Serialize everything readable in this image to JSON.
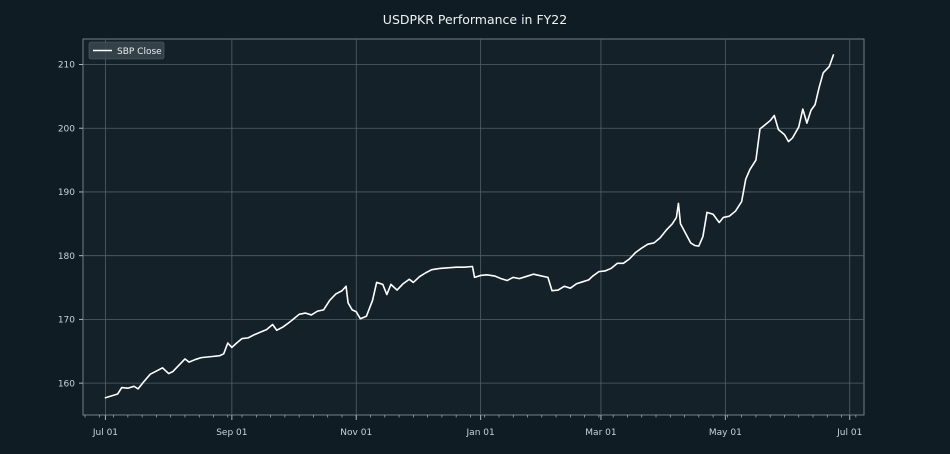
{
  "chart_data": {
    "type": "line",
    "title": "USDPKR Performance in FY22",
    "xlabel": "",
    "ylabel": "",
    "grid": true,
    "legend_position": "top-left",
    "x_ticks": [
      "Jul 01",
      "Sep 01",
      "Nov 01",
      "Jan 01",
      "Mar 01",
      "May 01",
      "Jul 01"
    ],
    "y_ticks": [
      160,
      170,
      180,
      190,
      200,
      210
    ],
    "x_range": [
      "2021-06-20",
      "2022-07-08"
    ],
    "y_range": [
      155,
      214
    ],
    "series": [
      {
        "name": "SBP Close",
        "color": "#ffffff",
        "points": [
          [
            "2021-07-01",
            157.7
          ],
          [
            "2021-07-04",
            158.0
          ],
          [
            "2021-07-07",
            158.3
          ],
          [
            "2021-07-09",
            159.3
          ],
          [
            "2021-07-12",
            159.2
          ],
          [
            "2021-07-15",
            159.5
          ],
          [
            "2021-07-17",
            159.1
          ],
          [
            "2021-07-20",
            160.3
          ],
          [
            "2021-07-23",
            161.4
          ],
          [
            "2021-07-26",
            161.9
          ],
          [
            "2021-07-29",
            162.4
          ],
          [
            "2021-08-01",
            161.5
          ],
          [
            "2021-08-03",
            161.8
          ],
          [
            "2021-08-06",
            162.8
          ],
          [
            "2021-08-09",
            163.8
          ],
          [
            "2021-08-11",
            163.3
          ],
          [
            "2021-08-14",
            163.7
          ],
          [
            "2021-08-17",
            164.0
          ],
          [
            "2021-08-20",
            164.1
          ],
          [
            "2021-08-23",
            164.2
          ],
          [
            "2021-08-26",
            164.3
          ],
          [
            "2021-08-28",
            164.6
          ],
          [
            "2021-08-30",
            166.3
          ],
          [
            "2021-09-01",
            165.6
          ],
          [
            "2021-09-03",
            166.2
          ],
          [
            "2021-09-06",
            167.0
          ],
          [
            "2021-09-09",
            167.1
          ],
          [
            "2021-09-12",
            167.6
          ],
          [
            "2021-09-15",
            168.0
          ],
          [
            "2021-09-18",
            168.4
          ],
          [
            "2021-09-21",
            169.2
          ],
          [
            "2021-09-23",
            168.3
          ],
          [
            "2021-09-26",
            168.8
          ],
          [
            "2021-09-29",
            169.5
          ],
          [
            "2021-10-01",
            170.0
          ],
          [
            "2021-10-04",
            170.8
          ],
          [
            "2021-10-07",
            171.0
          ],
          [
            "2021-10-10",
            170.7
          ],
          [
            "2021-10-13",
            171.3
          ],
          [
            "2021-10-16",
            171.5
          ],
          [
            "2021-10-19",
            173.0
          ],
          [
            "2021-10-22",
            174.0
          ],
          [
            "2021-10-25",
            174.5
          ],
          [
            "2021-10-27",
            175.2
          ],
          [
            "2021-10-28",
            172.6
          ],
          [
            "2021-10-30",
            171.5
          ],
          [
            "2021-11-01",
            171.2
          ],
          [
            "2021-11-03",
            170.1
          ],
          [
            "2021-11-06",
            170.5
          ],
          [
            "2021-11-09",
            173.0
          ],
          [
            "2021-11-11",
            175.8
          ],
          [
            "2021-11-14",
            175.5
          ],
          [
            "2021-11-16",
            173.9
          ],
          [
            "2021-11-18",
            175.5
          ],
          [
            "2021-11-21",
            174.6
          ],
          [
            "2021-11-24",
            175.6
          ],
          [
            "2021-11-27",
            176.3
          ],
          [
            "2021-11-29",
            175.8
          ],
          [
            "2021-12-02",
            176.7
          ],
          [
            "2021-12-05",
            177.3
          ],
          [
            "2021-12-08",
            177.8
          ],
          [
            "2021-12-12",
            178.0
          ],
          [
            "2021-12-16",
            178.1
          ],
          [
            "2021-12-20",
            178.2
          ],
          [
            "2021-12-24",
            178.2
          ],
          [
            "2021-12-28",
            178.3
          ],
          [
            "2021-12-29",
            176.6
          ],
          [
            "2022-01-01",
            176.9
          ],
          [
            "2022-01-04",
            177.0
          ],
          [
            "2022-01-08",
            176.8
          ],
          [
            "2022-01-11",
            176.4
          ],
          [
            "2022-01-14",
            176.1
          ],
          [
            "2022-01-17",
            176.6
          ],
          [
            "2022-01-20",
            176.4
          ],
          [
            "2022-01-24",
            176.8
          ],
          [
            "2022-01-27",
            177.1
          ],
          [
            "2022-01-31",
            176.8
          ],
          [
            "2022-02-03",
            176.6
          ],
          [
            "2022-02-05",
            174.5
          ],
          [
            "2022-02-08",
            174.6
          ],
          [
            "2022-02-11",
            175.2
          ],
          [
            "2022-02-14",
            174.9
          ],
          [
            "2022-02-17",
            175.6
          ],
          [
            "2022-02-20",
            175.9
          ],
          [
            "2022-02-23",
            176.2
          ],
          [
            "2022-02-25",
            176.8
          ],
          [
            "2022-02-28",
            177.5
          ],
          [
            "2022-03-03",
            177.6
          ],
          [
            "2022-03-06",
            178.0
          ],
          [
            "2022-03-09",
            178.8
          ],
          [
            "2022-03-12",
            178.8
          ],
          [
            "2022-03-15",
            179.5
          ],
          [
            "2022-03-18",
            180.5
          ],
          [
            "2022-03-21",
            181.2
          ],
          [
            "2022-03-24",
            181.8
          ],
          [
            "2022-03-27",
            182.0
          ],
          [
            "2022-03-30",
            182.8
          ],
          [
            "2022-04-02",
            184.0
          ],
          [
            "2022-04-05",
            185.0
          ],
          [
            "2022-04-07",
            186.0
          ],
          [
            "2022-04-08",
            188.2
          ],
          [
            "2022-04-09",
            185.0
          ],
          [
            "2022-04-12",
            183.2
          ],
          [
            "2022-04-14",
            182.0
          ],
          [
            "2022-04-16",
            181.6
          ],
          [
            "2022-04-18",
            181.5
          ],
          [
            "2022-04-20",
            183.0
          ],
          [
            "2022-04-22",
            186.8
          ],
          [
            "2022-04-25",
            186.5
          ],
          [
            "2022-04-28",
            185.2
          ],
          [
            "2022-04-30",
            186.0
          ],
          [
            "2022-05-03",
            186.2
          ],
          [
            "2022-05-06",
            187.0
          ],
          [
            "2022-05-09",
            188.5
          ],
          [
            "2022-05-11",
            192.0
          ],
          [
            "2022-05-13",
            193.5
          ],
          [
            "2022-05-16",
            195.0
          ],
          [
            "2022-05-18",
            199.9
          ],
          [
            "2022-05-20",
            200.4
          ],
          [
            "2022-05-23",
            201.2
          ],
          [
            "2022-05-25",
            202.0
          ],
          [
            "2022-05-27",
            199.8
          ],
          [
            "2022-05-30",
            199.0
          ],
          [
            "2022-06-01",
            197.9
          ],
          [
            "2022-06-03",
            198.5
          ],
          [
            "2022-06-06",
            200.2
          ],
          [
            "2022-06-08",
            203.0
          ],
          [
            "2022-06-10",
            200.8
          ],
          [
            "2022-06-12",
            202.8
          ],
          [
            "2022-06-14",
            203.7
          ],
          [
            "2022-06-16",
            206.4
          ],
          [
            "2022-06-18",
            208.7
          ],
          [
            "2022-06-21",
            209.7
          ],
          [
            "2022-06-23",
            211.5
          ]
        ]
      }
    ]
  }
}
